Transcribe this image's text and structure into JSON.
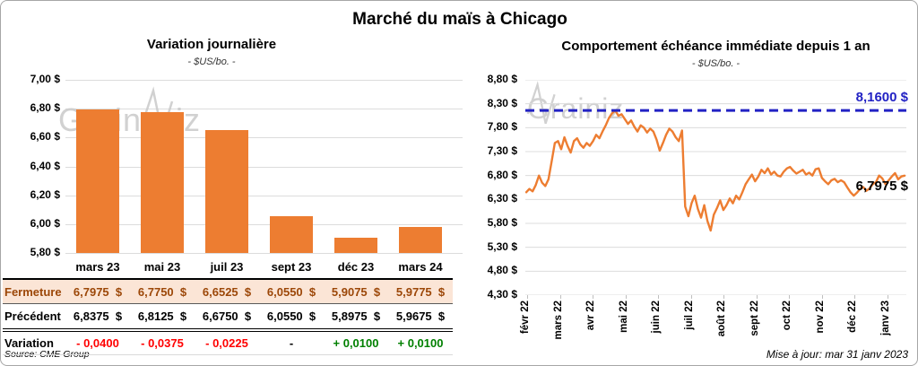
{
  "page": {
    "title": "Marché du maïs à Chicago",
    "source": "Source: CME Group",
    "updated": "Mise à jour: mar 31 janv 2023",
    "watermark": "Grainiz"
  },
  "colors": {
    "orange": "#ED7D31",
    "blue": "#2222C4",
    "red": "#FF0000",
    "green": "#008000",
    "fermeture_bg": "#FBE5D6",
    "fermeture_text": "#9C4708",
    "grid": "#DCDCDC",
    "watermark": "#C9C9C9"
  },
  "chart_data": [
    {
      "type": "bar",
      "title": "Variation journalière",
      "subtitle": "- $US/bo. -",
      "categories": [
        "mars 23",
        "mai 23",
        "juil 23",
        "sept 23",
        "déc 23",
        "mars 24"
      ],
      "values": [
        6.7975,
        6.775,
        6.6525,
        6.055,
        5.9075,
        5.9775
      ],
      "ylim": [
        5.8,
        7.0
      ],
      "yticks": [
        "7,00 $",
        "6,80 $",
        "6,60 $",
        "6,40 $",
        "6,20 $",
        "6,00 $",
        "5,80 $"
      ],
      "grid": true,
      "bar_color": "#ED7D31"
    },
    {
      "type": "line",
      "title": "Comportement échéance immédiate depuis 1 an",
      "subtitle": "- $US/bo. -",
      "x_labels": [
        "févr 22",
        "mars 22",
        "avr 22",
        "mai 22",
        "juin 22",
        "juil 22",
        "août 22",
        "sept 22",
        "oct 22",
        "nov 22",
        "déc 22",
        "janv 23"
      ],
      "values": [
        6.45,
        6.52,
        6.47,
        6.6,
        6.8,
        6.65,
        6.58,
        6.72,
        7.1,
        7.48,
        7.52,
        7.35,
        7.6,
        7.42,
        7.28,
        7.52,
        7.58,
        7.45,
        7.38,
        7.48,
        7.42,
        7.52,
        7.65,
        7.58,
        7.72,
        7.85,
        8.0,
        8.1,
        8.16,
        8.05,
        8.08,
        7.98,
        7.88,
        7.95,
        7.82,
        7.72,
        7.85,
        7.8,
        7.7,
        7.78,
        7.72,
        7.55,
        7.32,
        7.48,
        7.65,
        7.78,
        7.72,
        7.6,
        7.52,
        7.74,
        6.15,
        5.95,
        6.22,
        6.38,
        6.1,
        5.92,
        6.18,
        5.85,
        5.65,
        5.98,
        6.12,
        6.28,
        6.08,
        6.18,
        6.32,
        6.22,
        6.38,
        6.3,
        6.45,
        6.62,
        6.72,
        6.82,
        6.68,
        6.78,
        6.92,
        6.85,
        6.95,
        6.82,
        6.88,
        6.8,
        6.78,
        6.88,
        6.95,
        6.98,
        6.9,
        6.84,
        6.88,
        6.92,
        6.82,
        6.86,
        6.8,
        6.93,
        6.95,
        6.75,
        6.68,
        6.62,
        6.7,
        6.73,
        6.66,
        6.7,
        6.66,
        6.55,
        6.45,
        6.38,
        6.44,
        6.52,
        6.56,
        6.48,
        6.53,
        6.62,
        6.66,
        6.8,
        6.74,
        6.62,
        6.7,
        6.78,
        6.85,
        6.72,
        6.78,
        6.7975
      ],
      "ylim": [
        4.3,
        8.8
      ],
      "yticks": [
        "8,80 $",
        "8,30 $",
        "7,80 $",
        "7,30 $",
        "6,80 $",
        "6,30 $",
        "5,80 $",
        "5,30 $",
        "4,80 $",
        "4,30 $"
      ],
      "grid": true,
      "line_color": "#ED7D31",
      "ref_line": {
        "value": 8.16,
        "label": "8,1600 $",
        "color": "#2222C4",
        "style": "dashed"
      },
      "end_label": {
        "value": 6.7975,
        "label": "6,7975 $"
      }
    }
  ],
  "table": {
    "header": [
      "mars 23",
      "mai 23",
      "juil 23",
      "sept 23",
      "déc 23",
      "mars 24"
    ],
    "rows": [
      {
        "label": "Fermeture",
        "cells": [
          "6,7975  $",
          "6,7750  $",
          "6,6525  $",
          "6,0550  $",
          "5,9075  $",
          "5,9775  $"
        ],
        "style": "fermeture"
      },
      {
        "label": "Précédent",
        "cells": [
          "6,8375  $",
          "6,8125  $",
          "6,6750  $",
          "6,0550  $",
          "5,8975  $",
          "5,9675  $"
        ],
        "style": "precedent"
      },
      {
        "label": "Variation",
        "cells": [
          "- 0,0400",
          "- 0,0375",
          "- 0,0225",
          "-",
          "+ 0,0100",
          "+ 0,0100"
        ],
        "cell_colors": [
          "neg",
          "neg",
          "neg",
          "flat",
          "pos",
          "pos"
        ],
        "style": "variation"
      }
    ]
  }
}
